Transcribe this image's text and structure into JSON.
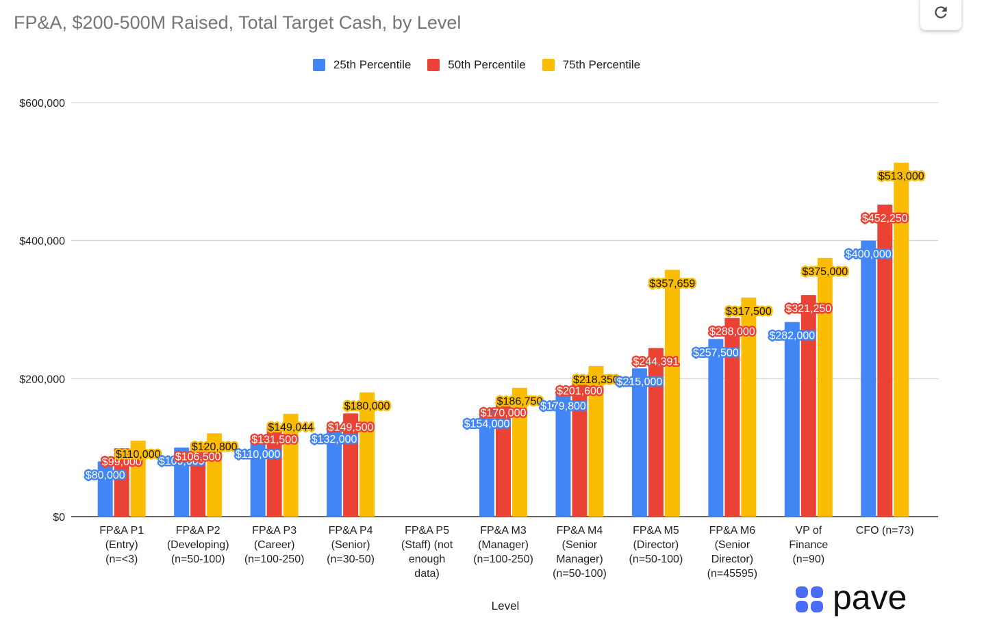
{
  "title": "FP&A, $200-500M Raised, Total Target Cash, by Level",
  "brand": "pave",
  "colors": {
    "s25": "#4285F4",
    "s50": "#EA4335",
    "s75": "#FBBC04",
    "title": "#757575",
    "brand": "#4A6CF7"
  },
  "icons": {
    "refresh": "refresh-icon",
    "logo": "pave-logo-icon"
  },
  "chart_data": {
    "type": "bar",
    "title": "FP&A, $200-500M Raised, Total Target Cash, by Level",
    "xlabel": "Level",
    "ylabel": "",
    "ylim": [
      0,
      600000
    ],
    "yticks": [
      0,
      200000,
      400000,
      600000
    ],
    "ytick_labels": [
      "$0",
      "$200,000",
      "$400,000",
      "$600,000"
    ],
    "grid": true,
    "legend_position": "top-center",
    "categories": [
      [
        "FP&A P1",
        "(Entry)",
        "(n=<3)"
      ],
      [
        "FP&A P2",
        "(Developing)",
        "(n=50-100)"
      ],
      [
        "FP&A P3",
        "(Career)",
        "(n=100-250)"
      ],
      [
        "FP&A P4",
        "(Senior)",
        "(n=30-50)"
      ],
      [
        "FP&A P5",
        "(Staff) (not",
        "enough",
        "data)"
      ],
      [
        "FP&A M3",
        "(Manager)",
        "(n=100-250)"
      ],
      [
        "FP&A M4",
        "(Senior",
        "Manager)",
        "(n=50-100)"
      ],
      [
        "FP&A M5",
        "(Director)",
        "(n=50-100)"
      ],
      [
        "FP&A M6",
        "(Senior",
        "Director)",
        "(n=45595)"
      ],
      [
        "VP of",
        "Finance",
        "(n=90)"
      ],
      [
        "CFO (n=73)"
      ]
    ],
    "series": [
      {
        "name": "25th Percentile",
        "color": "#4285F4",
        "values": [
          80000,
          100000,
          110000,
          132000,
          null,
          154000,
          179800,
          215000,
          257500,
          282000,
          400000
        ],
        "labels": [
          "$80,000",
          "$100,000",
          "$110,000",
          "$132,000",
          "",
          "$154,000",
          "$179,800",
          "$215,000",
          "$257,500",
          "$282,000",
          "$400,000"
        ]
      },
      {
        "name": "50th Percentile",
        "color": "#EA4335",
        "values": [
          99000,
          106500,
          131500,
          149500,
          null,
          170000,
          201600,
          244391,
          288000,
          321250,
          452250
        ],
        "labels": [
          "$99,000",
          "$106,500",
          "$131,500",
          "$149,500",
          "",
          "$170,000",
          "$201,600",
          "$244,391",
          "$288,000",
          "$321,250",
          "$452,250"
        ]
      },
      {
        "name": "75th Percentile",
        "color": "#FBBC04",
        "values": [
          110000,
          120800,
          149044,
          180000,
          null,
          186750,
          218350,
          357659,
          317500,
          375000,
          513000
        ],
        "labels": [
          "$110,000",
          "$120,800",
          "$149,044",
          "$180,000",
          "",
          "$186,750",
          "$218,350",
          "$357,659",
          "$317,500",
          "$375,000",
          "$513,000"
        ]
      }
    ]
  }
}
